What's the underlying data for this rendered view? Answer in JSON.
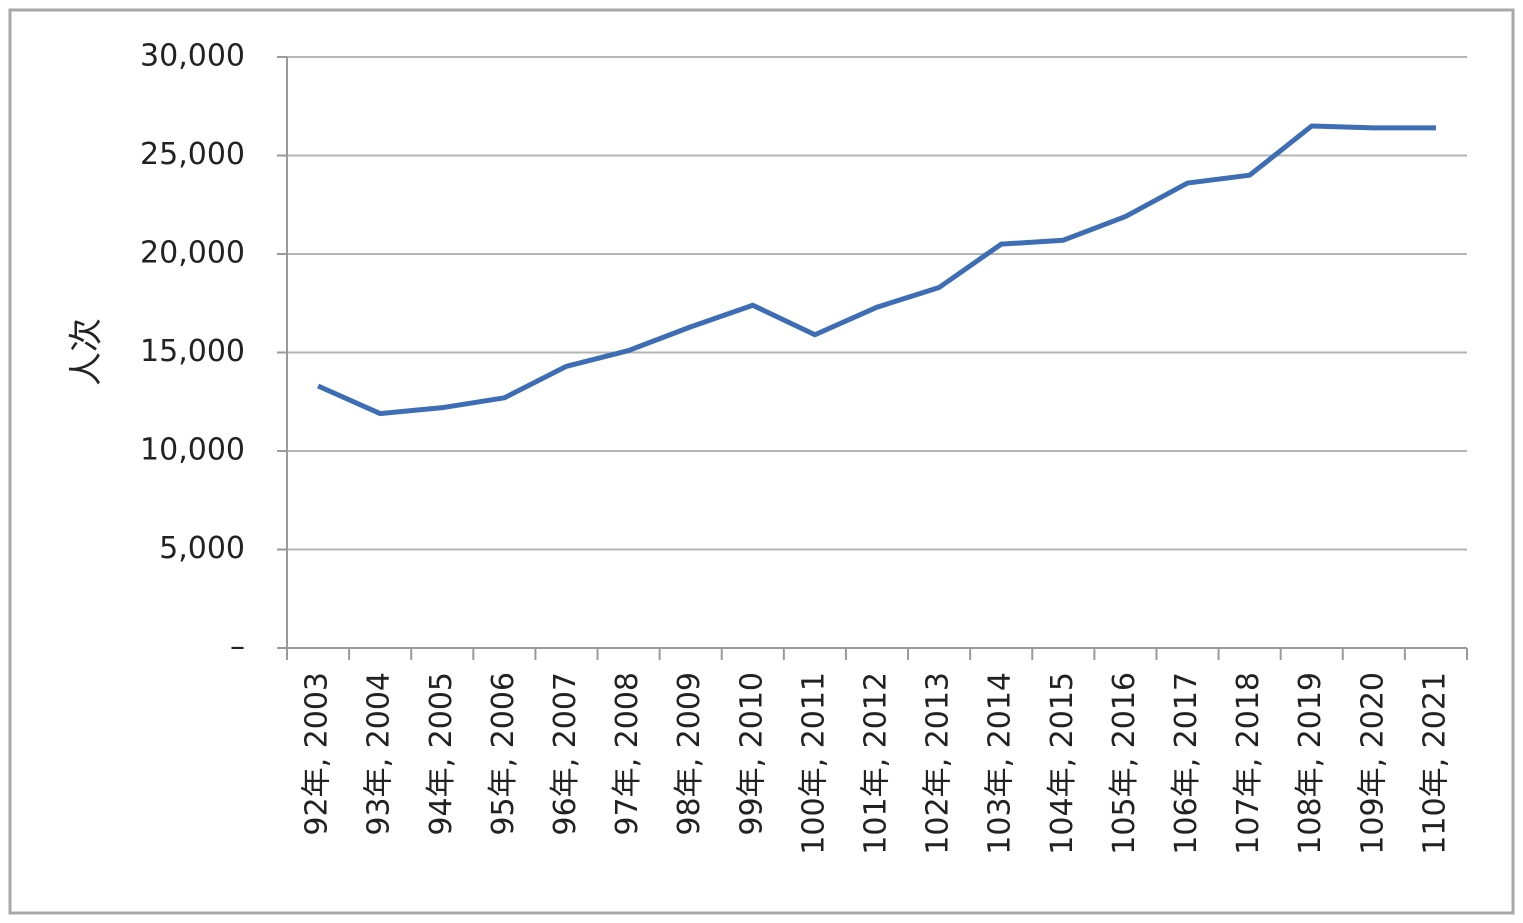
{
  "chart_data": {
    "type": "line",
    "y_label": "人次",
    "categories": [
      "92年, 2003",
      "93年, 2004",
      "94年, 2005",
      "95年, 2006",
      "96年, 2007",
      "97年, 2008",
      "98年, 2009",
      "99年, 2010",
      "100年, 2011",
      "101年, 2012",
      "102年, 2013",
      "103年, 2014",
      "104年, 2015",
      "105年, 2016",
      "106年, 2017",
      "107年, 2018",
      "108年, 2019",
      "109年, 2020",
      "110年, 2021"
    ],
    "values": [
      13300,
      11900,
      12200,
      12700,
      14300,
      15100,
      16300,
      17400,
      15900,
      17300,
      18300,
      20500,
      20700,
      21900,
      23600,
      24000,
      26500,
      26400,
      26400
    ],
    "color": "#3d6db5",
    "ylim": [
      0,
      30000
    ],
    "yticks": [
      {
        "value": 0,
        "label": "–"
      },
      {
        "value": 5000,
        "label": "5,000"
      },
      {
        "value": 10000,
        "label": "10,000"
      },
      {
        "value": 15000,
        "label": "15,000"
      },
      {
        "value": 20000,
        "label": "20,000"
      },
      {
        "value": 25000,
        "label": "25,000"
      },
      {
        "value": 30000,
        "label": "30,000"
      }
    ],
    "grid": true
  }
}
